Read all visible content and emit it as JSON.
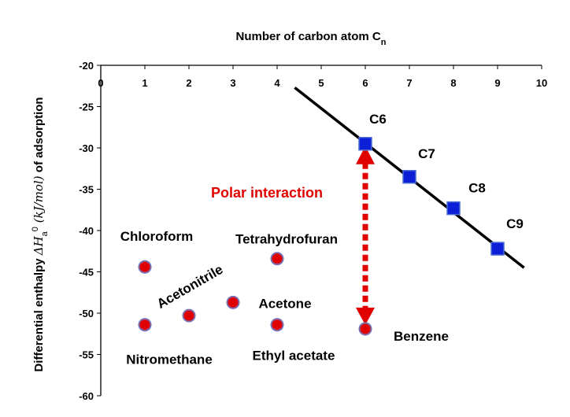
{
  "chart_data": {
    "type": "scatter",
    "xlabel": "Number of carbon atom C",
    "xlabel_sub": "n",
    "xlabel_position": "top",
    "ylabel_pre": "Differential enthalpy ",
    "ylabel_math": "ΔH",
    "ylabel_sub": "a",
    "ylabel_sup": "0",
    "ylabel_unit": " (kJ/mol)",
    "ylabel_post": " of adsorption",
    "xlim": [
      0,
      10
    ],
    "ylim": [
      -60,
      -20
    ],
    "x_ticks": [
      0,
      1,
      2,
      3,
      4,
      5,
      6,
      7,
      8,
      9,
      10
    ],
    "y_ticks": [
      -20,
      -25,
      -30,
      -35,
      -40,
      -45,
      -50,
      -55,
      -60
    ],
    "grid": false,
    "colors": {
      "polar": "#e00000",
      "alkane": "#0a1fd6",
      "line": "#000000",
      "annotation": "#e00000"
    },
    "series": [
      {
        "name_role": "n-alkanes",
        "marker": "square",
        "points": [
          {
            "x": 6,
            "y": -29.5,
            "label": "C6"
          },
          {
            "x": 7,
            "y": -33.5,
            "label": "C7"
          },
          {
            "x": 8,
            "y": -37.3,
            "label": "C8"
          },
          {
            "x": 9,
            "y": -42.2,
            "label": "C9"
          }
        ]
      },
      {
        "name_role": "polar molecules",
        "marker": "circle",
        "points": [
          {
            "x": 1,
            "y": -44.4,
            "label": "Chloroform"
          },
          {
            "x": 1,
            "y": -51.4,
            "label": "Nitromethane"
          },
          {
            "x": 2,
            "y": -50.3,
            "label": "Acetonitrile"
          },
          {
            "x": 3,
            "y": -48.7,
            "label": "Acetone"
          },
          {
            "x": 4,
            "y": -43.4,
            "label": "Tetrahydrofuran"
          },
          {
            "x": 4,
            "y": -51.4,
            "label": "Ethyl acetate"
          },
          {
            "x": 6,
            "y": -51.9,
            "label": "Benzene"
          }
        ]
      }
    ],
    "regression_line": {
      "x": [
        4.4,
        9.6
      ],
      "y": [
        -22.7,
        -44.5
      ]
    },
    "annotation": {
      "text": "Polar interaction",
      "x": 6,
      "y_from": -51.9,
      "y_to": -29.5
    }
  }
}
